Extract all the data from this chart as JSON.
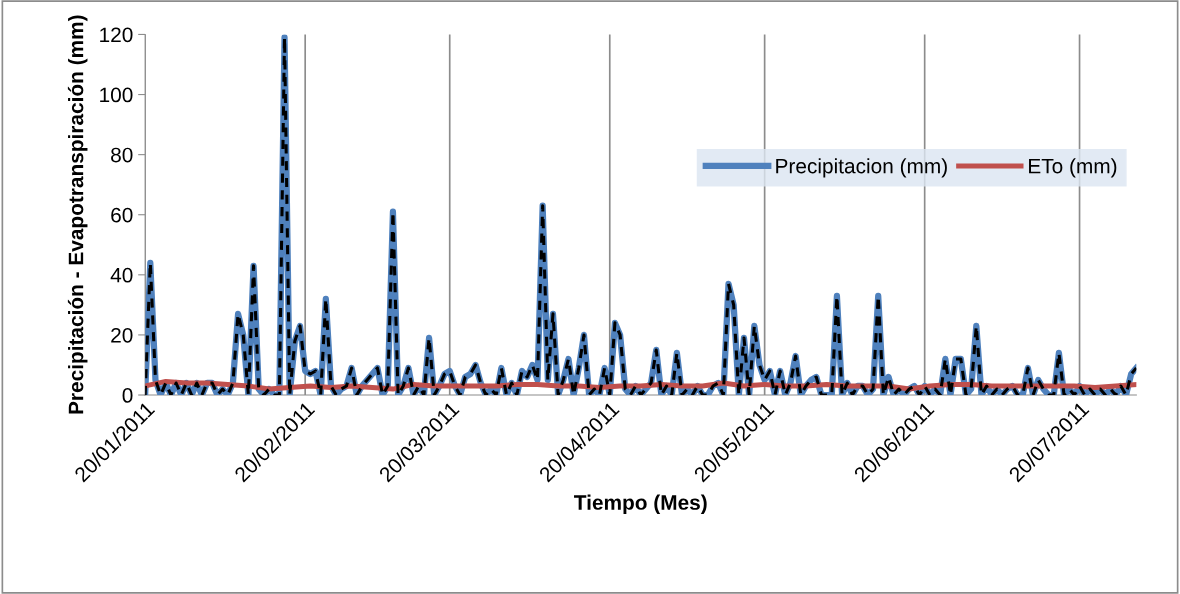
{
  "chart_data": {
    "type": "line",
    "xlabel": "Tiempo (Mes)",
    "ylabel": "Precipitación - Evapotranspiración (mm)",
    "xlim": [
      "2011-01-20",
      "2011-07-31"
    ],
    "xticks": [
      {
        "value": "2011-01-20",
        "label": "20/01/2011"
      },
      {
        "value": "2011-02-20",
        "label": "20/02/2011"
      },
      {
        "value": "2011-03-20",
        "label": "20/03/2011"
      },
      {
        "value": "2011-04-20",
        "label": "20/04/2011"
      },
      {
        "value": "2011-05-20",
        "label": "20/05/2011"
      },
      {
        "value": "2011-06-20",
        "label": "20/06/2011"
      },
      {
        "value": "2011-07-20",
        "label": "20/07/2011"
      }
    ],
    "ylim": [
      0,
      120
    ],
    "yticks": [
      0,
      20,
      40,
      60,
      80,
      100,
      120
    ],
    "grid": "x",
    "legend": "right",
    "marker": "none",
    "x": [
      "2011-01-20",
      "2011-01-21",
      "2011-01-22",
      "2011-01-23",
      "2011-01-24",
      "2011-01-25",
      "2011-01-26",
      "2011-01-27",
      "2011-01-28",
      "2011-01-29",
      "2011-01-30",
      "2011-01-31",
      "2011-02-01",
      "2011-02-02",
      "2011-02-03",
      "2011-02-04",
      "2011-02-05",
      "2011-02-06",
      "2011-02-07",
      "2011-02-08",
      "2011-02-09",
      "2011-02-10",
      "2011-02-11",
      "2011-02-12",
      "2011-02-13",
      "2011-02-14",
      "2011-02-15",
      "2011-02-16",
      "2011-02-17",
      "2011-02-18",
      "2011-02-19",
      "2011-02-20",
      "2011-02-21",
      "2011-02-22",
      "2011-02-23",
      "2011-02-24",
      "2011-02-25",
      "2011-02-26",
      "2011-02-27",
      "2011-02-28",
      "2011-03-01",
      "2011-03-02",
      "2011-03-03",
      "2011-03-04",
      "2011-03-05",
      "2011-03-06",
      "2011-03-07",
      "2011-03-08",
      "2011-03-09",
      "2011-03-10",
      "2011-03-11",
      "2011-03-12",
      "2011-03-13",
      "2011-03-14",
      "2011-03-15",
      "2011-03-16",
      "2011-03-17",
      "2011-03-18",
      "2011-03-19",
      "2011-03-20",
      "2011-03-21",
      "2011-03-22",
      "2011-03-23",
      "2011-03-24",
      "2011-03-25",
      "2011-03-26",
      "2011-03-27",
      "2011-03-28",
      "2011-03-29",
      "2011-03-30",
      "2011-03-31",
      "2011-04-01",
      "2011-04-02",
      "2011-04-03",
      "2011-04-04",
      "2011-04-05",
      "2011-04-06",
      "2011-04-07",
      "2011-04-08",
      "2011-04-09",
      "2011-04-10",
      "2011-04-11",
      "2011-04-12",
      "2011-04-13",
      "2011-04-14",
      "2011-04-15",
      "2011-04-16",
      "2011-04-17",
      "2011-04-18",
      "2011-04-19",
      "2011-04-20",
      "2011-04-21",
      "2011-04-22",
      "2011-04-23",
      "2011-04-24",
      "2011-04-25",
      "2011-04-26",
      "2011-04-27",
      "2011-04-28",
      "2011-04-29",
      "2011-04-30",
      "2011-05-01",
      "2011-05-02",
      "2011-05-03",
      "2011-05-04",
      "2011-05-05",
      "2011-05-06",
      "2011-05-07",
      "2011-05-08",
      "2011-05-09",
      "2011-05-10",
      "2011-05-11",
      "2011-05-12",
      "2011-05-13",
      "2011-05-14",
      "2011-05-15",
      "2011-05-16",
      "2011-05-17",
      "2011-05-18",
      "2011-05-19",
      "2011-05-20",
      "2011-05-21",
      "2011-05-22",
      "2011-05-23",
      "2011-05-24",
      "2011-05-25",
      "2011-05-26",
      "2011-05-27",
      "2011-05-28",
      "2011-05-29",
      "2011-05-30",
      "2011-05-31",
      "2011-06-01",
      "2011-06-02",
      "2011-06-03",
      "2011-06-04",
      "2011-06-05",
      "2011-06-06",
      "2011-06-07",
      "2011-06-08",
      "2011-06-09",
      "2011-06-10",
      "2011-06-11",
      "2011-06-12",
      "2011-06-13",
      "2011-06-14",
      "2011-06-15",
      "2011-06-16",
      "2011-06-17",
      "2011-06-18",
      "2011-06-19",
      "2011-06-20",
      "2011-06-21",
      "2011-06-22",
      "2011-06-23",
      "2011-06-24",
      "2011-06-25",
      "2011-06-26",
      "2011-06-27",
      "2011-06-28",
      "2011-06-29",
      "2011-06-30",
      "2011-07-01",
      "2011-07-02",
      "2011-07-03",
      "2011-07-04",
      "2011-07-05",
      "2011-07-06",
      "2011-07-07",
      "2011-07-08",
      "2011-07-09",
      "2011-07-10",
      "2011-07-11",
      "2011-07-12",
      "2011-07-13",
      "2011-07-14",
      "2011-07-15",
      "2011-07-16",
      "2011-07-17",
      "2011-07-18",
      "2011-07-19",
      "2011-07-20",
      "2011-07-21",
      "2011-07-22",
      "2011-07-23",
      "2011-07-24",
      "2011-07-25",
      "2011-07-26",
      "2011-07-27",
      "2011-07-28",
      "2011-07-29",
      "2011-07-30",
      "2011-07-31"
    ],
    "series": [
      {
        "name": "Precipitacion (mm)",
        "color": "#4f81bd",
        "values": [
          0,
          44,
          5,
          0,
          4,
          0,
          4,
          0,
          4,
          0,
          4,
          0,
          4,
          4,
          0,
          2,
          0,
          4,
          27,
          20,
          0,
          43,
          2,
          0,
          2,
          0,
          0,
          119,
          0,
          18,
          23,
          8,
          7,
          8,
          0,
          32,
          3,
          0,
          2,
          3,
          9,
          0,
          3,
          5,
          7,
          9,
          0,
          3,
          61,
          0,
          3,
          9,
          0,
          3,
          0,
          19,
          0,
          3,
          7,
          8,
          3,
          0,
          6,
          7,
          10,
          4,
          0,
          2,
          0,
          9,
          0,
          4,
          0,
          8,
          6,
          10,
          5,
          63,
          5,
          27,
          0,
          5,
          12,
          0,
          9,
          20,
          0,
          2,
          0,
          9,
          0,
          24,
          20,
          2,
          0,
          3,
          0,
          2,
          4,
          15,
          0,
          3,
          0,
          14,
          0,
          2,
          0,
          3,
          0,
          0,
          3,
          4,
          0,
          37,
          30,
          0,
          19,
          0,
          23,
          10,
          5,
          8,
          0,
          8,
          0,
          4,
          13,
          0,
          3,
          5,
          6,
          0,
          0,
          0,
          33,
          0,
          4,
          0,
          3,
          3,
          0,
          2,
          33,
          0,
          6,
          0,
          2,
          0,
          2,
          3,
          0,
          3,
          0,
          2,
          0,
          12,
          0,
          12,
          12,
          0,
          2,
          23,
          0,
          3,
          0,
          2,
          0,
          2,
          3,
          0,
          0,
          9,
          0,
          5,
          2,
          0,
          0,
          14,
          0,
          2,
          0,
          3,
          0,
          2,
          0,
          2,
          0,
          2,
          0,
          3,
          0,
          7,
          9
        ]
      },
      {
        "name": "ETo (mm)",
        "color": "#c0504d",
        "x": [
          "2011-01-20",
          "2011-01-24",
          "2011-01-28",
          "2011-02-01",
          "2011-02-05",
          "2011-02-09",
          "2011-02-13",
          "2011-02-17",
          "2011-02-21",
          "2011-02-25",
          "2011-03-01",
          "2011-03-05",
          "2011-03-09",
          "2011-03-13",
          "2011-03-17",
          "2011-03-21",
          "2011-03-25",
          "2011-03-29",
          "2011-04-02",
          "2011-04-06",
          "2011-04-10",
          "2011-04-14",
          "2011-04-18",
          "2011-04-22",
          "2011-04-26",
          "2011-04-30",
          "2011-05-04",
          "2011-05-08",
          "2011-05-12",
          "2011-05-16",
          "2011-05-20",
          "2011-05-24",
          "2011-05-28",
          "2011-06-01",
          "2011-06-05",
          "2011-06-09",
          "2011-06-13",
          "2011-06-17",
          "2011-06-21",
          "2011-06-25",
          "2011-06-29",
          "2011-07-03",
          "2011-07-07",
          "2011-07-11",
          "2011-07-15",
          "2011-07-19",
          "2011-07-23",
          "2011-07-27",
          "2011-07-31"
        ],
        "values": [
          3,
          4.5,
          4,
          4,
          3.5,
          3,
          2,
          2.5,
          3,
          2.5,
          3,
          2.5,
          2,
          3.5,
          3,
          3,
          3,
          3,
          3.5,
          3.5,
          3,
          3,
          2.5,
          3,
          3,
          3.5,
          3,
          3,
          4,
          3,
          3.5,
          3,
          3,
          3.5,
          3,
          3,
          3,
          2,
          3,
          3.5,
          3.5,
          3,
          3,
          3,
          3,
          3,
          2.5,
          3,
          3.5
        ]
      },
      {
        "color": "#000000",
        "line_style": "dashed",
        "values": [
          0,
          44,
          5,
          0,
          4,
          0,
          4,
          0,
          4,
          0,
          4,
          0,
          4,
          4,
          0,
          2,
          0,
          4,
          27,
          20,
          0,
          43,
          2,
          0,
          2,
          0,
          0,
          119,
          0,
          18,
          23,
          8,
          7,
          8,
          0,
          32,
          3,
          0,
          2,
          3,
          9,
          0,
          3,
          5,
          7,
          9,
          0,
          3,
          61,
          0,
          3,
          9,
          0,
          3,
          0,
          19,
          0,
          3,
          7,
          8,
          3,
          0,
          6,
          7,
          10,
          4,
          0,
          2,
          0,
          9,
          0,
          4,
          0,
          8,
          6,
          10,
          5,
          63,
          5,
          27,
          0,
          5,
          12,
          0,
          9,
          20,
          0,
          2,
          0,
          9,
          0,
          24,
          20,
          2,
          0,
          3,
          0,
          2,
          4,
          15,
          0,
          3,
          0,
          14,
          0,
          2,
          0,
          3,
          0,
          0,
          3,
          4,
          0,
          37,
          30,
          0,
          19,
          0,
          23,
          10,
          5,
          8,
          0,
          8,
          0,
          4,
          13,
          0,
          3,
          5,
          6,
          0,
          0,
          0,
          33,
          0,
          4,
          0,
          3,
          3,
          0,
          2,
          33,
          0,
          6,
          0,
          2,
          0,
          2,
          3,
          0,
          3,
          0,
          2,
          0,
          12,
          0,
          12,
          12,
          0,
          2,
          23,
          0,
          3,
          0,
          2,
          0,
          2,
          3,
          0,
          0,
          9,
          0,
          5,
          2,
          0,
          0,
          14,
          0,
          2,
          0,
          3,
          0,
          2,
          0,
          2,
          0,
          2,
          0,
          3,
          0,
          7,
          9
        ]
      }
    ]
  }
}
